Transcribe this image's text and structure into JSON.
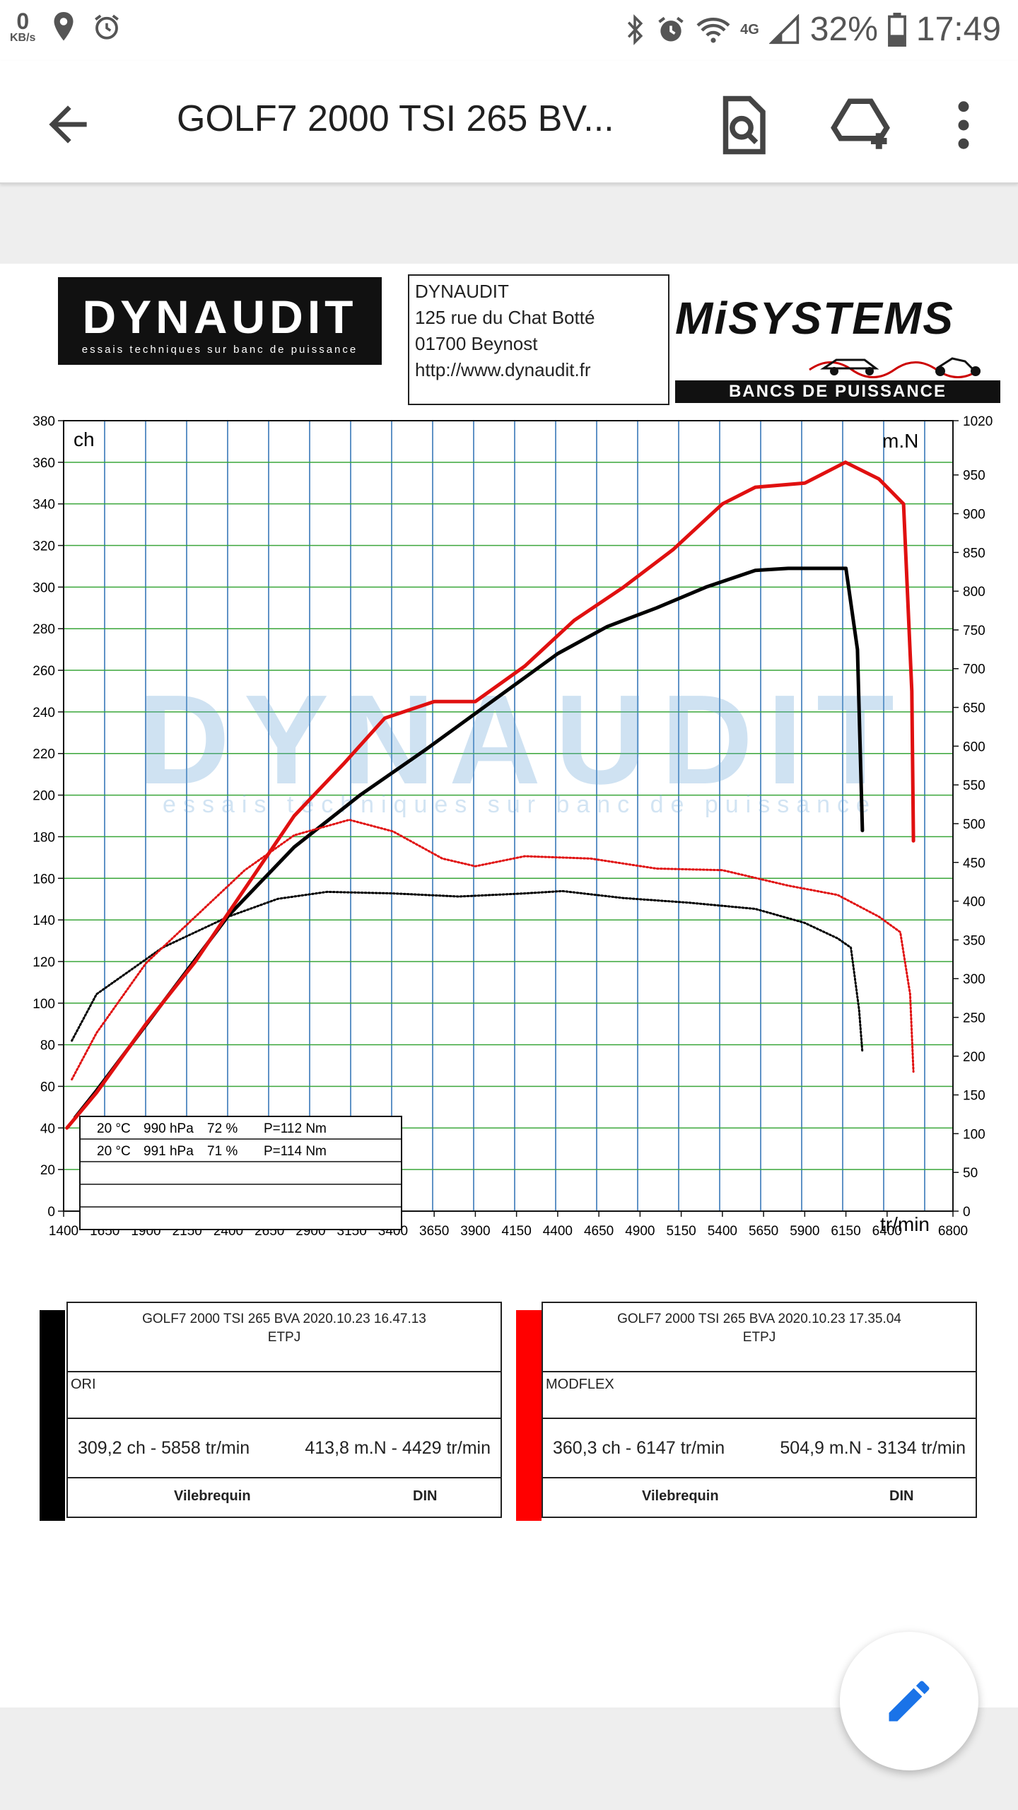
{
  "status_bar": {
    "net_speed_value": "0",
    "net_speed_unit": "KB/s",
    "network_type": "4G",
    "battery": "32%",
    "time": "17:49",
    "left_icons": [
      "location-icon",
      "alarm-icon"
    ],
    "right_icons": [
      "bluetooth-icon",
      "alarm-icon",
      "wifi-icon",
      "signal-icon",
      "battery-icon"
    ]
  },
  "app_bar": {
    "title": "GOLF7 2000 TSI 265 BV...",
    "icons": [
      "back-arrow-icon",
      "search-document-icon",
      "add-to-drive-icon",
      "more-vert-icon"
    ]
  },
  "document": {
    "logo_left": {
      "main": "DYNAUDIT",
      "tagline": "essais techniques sur banc de puissance"
    },
    "address": [
      "DYNAUDIT",
      "125 rue du Chat Botté",
      "01700 Beynost",
      "http://www.dynaudit.fr"
    ],
    "logo_right": {
      "main": "MiSYSTEMS",
      "sub": "BANCS DE PUISSANCE"
    },
    "watermark": {
      "main": "DYNAUDIT",
      "tagline": "essais techniques sur banc de puissance"
    }
  },
  "chart_data": {
    "type": "line",
    "left_axis_label": "ch",
    "right_axis_label": "m.N",
    "x_axis_label": "tr/min",
    "x_ticks": [
      1400,
      1650,
      1900,
      2150,
      2400,
      2650,
      2900,
      3150,
      3400,
      3650,
      3900,
      4150,
      4400,
      4650,
      4900,
      5150,
      5400,
      5650,
      5900,
      6150,
      6400,
      6800
    ],
    "xlim": [
      1400,
      6800
    ],
    "ylim_left": [
      0,
      380
    ],
    "y_left_ticks": [
      0,
      20,
      40,
      60,
      80,
      100,
      120,
      140,
      160,
      180,
      200,
      220,
      240,
      260,
      280,
      300,
      320,
      340,
      360,
      380
    ],
    "ylim_right": [
      0,
      1020
    ],
    "y_right_ticks": [
      0,
      50,
      100,
      150,
      200,
      250,
      300,
      350,
      400,
      450,
      500,
      550,
      600,
      650,
      700,
      750,
      800,
      850,
      900,
      950,
      1020
    ],
    "colors": {
      "ori": "#000000",
      "modflex": "#e01010",
      "grid_vertical": "#2a6fb3",
      "grid_horizontal": "#3aa63a"
    },
    "series": [
      {
        "name": "ORI",
        "quantity": "power",
        "axis": "left",
        "color": "#000000",
        "x": [
          1470,
          1600,
          2000,
          2400,
          2800,
          3200,
          3600,
          4000,
          4400,
          4700,
          5000,
          5300,
          5600,
          5800,
          6000,
          6150,
          6220,
          6250
        ],
        "y": [
          45,
          58,
          100,
          142,
          175,
          200,
          222,
          245,
          268,
          281,
          290,
          300,
          308,
          309,
          309,
          309,
          270,
          183
        ]
      },
      {
        "name": "ORI",
        "quantity": "torque",
        "axis": "right",
        "color": "#000000",
        "x": [
          1450,
          1600,
          2000,
          2400,
          2700,
          3000,
          3400,
          3800,
          4200,
          4429,
          4800,
          5200,
          5600,
          5900,
          6100,
          6180,
          6230,
          6250
        ],
        "y": [
          220,
          280,
          340,
          380,
          403,
          412,
          410,
          406,
          410,
          413,
          404,
          398,
          390,
          372,
          352,
          340,
          260,
          205
        ]
      },
      {
        "name": "MODFLEX",
        "quantity": "power",
        "axis": "right_unused",
        "color": "#e01010",
        "x": [
          1420,
          1600,
          1900,
          2200,
          2500,
          2800,
          3100,
          3350,
          3650,
          3900,
          4200,
          4500,
          4800,
          5100,
          5400,
          5600,
          5900,
          6147,
          6350,
          6500,
          6550,
          6560
        ],
        "y": [
          40,
          57,
          90,
          120,
          155,
          190,
          215,
          237,
          245,
          245,
          262,
          284,
          300,
          318,
          340,
          348,
          350,
          360,
          352,
          340,
          250,
          178
        ]
      },
      {
        "name": "MODFLEX",
        "quantity": "torque",
        "axis": "right",
        "color": "#e01010",
        "x": [
          1450,
          1600,
          1900,
          2200,
          2500,
          2800,
          3134,
          3400,
          3700,
          3900,
          4200,
          4600,
          5000,
          5400,
          5800,
          6100,
          6350,
          6480,
          6540,
          6560
        ],
        "y": [
          170,
          230,
          320,
          380,
          440,
          485,
          505,
          490,
          455,
          445,
          458,
          455,
          442,
          440,
          420,
          408,
          380,
          360,
          280,
          180
        ]
      }
    ]
  },
  "conditions_table": {
    "rows": [
      {
        "temp": "20 °C",
        "pressure": "990 hPa",
        "humidity": "72 %",
        "loss": "P=112 Nm"
      },
      {
        "temp": "20 °C",
        "pressure": "991 hPa",
        "humidity": "71 %",
        "loss": "P=114 Nm"
      },
      {
        "temp": "",
        "pressure": "",
        "humidity": "",
        "loss": ""
      },
      {
        "temp": "",
        "pressure": "",
        "humidity": "",
        "loss": ""
      },
      {
        "temp": "",
        "pressure": "",
        "humidity": "",
        "loss": ""
      }
    ]
  },
  "results": [
    {
      "color": "#000000",
      "line1": "GOLF7 2000 TSI 265 BVA   2020.10.23 16.47.13",
      "line2": "ETPJ",
      "name": "ORI",
      "power": "309,2 ch - 5858 tr/min",
      "torque": "413,8 m.N - 4429 tr/min",
      "mode": "Vilebrequin",
      "norm": "DIN"
    },
    {
      "color": "#ff0000",
      "line1": "GOLF7 2000 TSI 265 BVA   2020.10.23 17.35.04",
      "line2": "ETPJ",
      "name": "MODFLEX",
      "power": "360,3 ch - 6147 tr/min",
      "torque": "504,9 m.N - 3134 tr/min",
      "mode": "Vilebrequin",
      "norm": "DIN"
    }
  ]
}
